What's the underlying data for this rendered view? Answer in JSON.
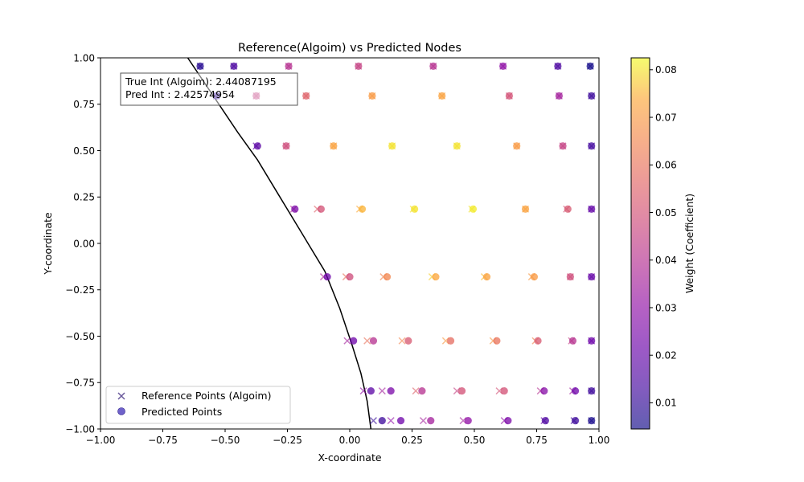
{
  "chart_data": {
    "type": "scatter",
    "title": "Reference(Algoim) vs Predicted Nodes",
    "xlabel": "X-coordinate",
    "ylabel": "Y-coordinate",
    "xlim": [
      -1.0,
      1.0
    ],
    "ylim": [
      -1.0,
      1.0
    ],
    "xticks": [
      -1.0,
      -0.75,
      -0.5,
      -0.25,
      0.0,
      0.25,
      0.5,
      0.75,
      1.0
    ],
    "yticks": [
      -1.0,
      -0.75,
      -0.5,
      -0.25,
      0.0,
      0.25,
      0.5,
      0.75,
      1.0
    ],
    "tick_labels": [
      "−1.00",
      "−0.75",
      "−0.50",
      "−0.25",
      "0.00",
      "0.25",
      "0.50",
      "0.75",
      "1.00"
    ],
    "grid": false,
    "legend": {
      "placement": "lower-left",
      "entries": [
        "Reference Points (Algoim)",
        "Predicted Points"
      ]
    },
    "annotation": {
      "placement": "upper-left",
      "lines": [
        "True Int (Algoim): 2.44087195",
        "Pred Int : 2.42574954"
      ]
    },
    "colorbar": {
      "label": "Weight (Coefficient)",
      "colormap": "plasma",
      "range": [
        0.0045,
        0.0825
      ],
      "ticks": [
        0.01,
        0.02,
        0.03,
        0.04,
        0.05,
        0.06,
        0.07,
        0.08
      ],
      "tick_labels": [
        "0.01",
        "0.02",
        "0.03",
        "0.04",
        "0.05",
        "0.06",
        "0.07",
        "0.08"
      ]
    },
    "boundary_curve": {
      "color": "#000000",
      "points": [
        [
          -0.65,
          1.0
        ],
        [
          -0.55,
          0.8
        ],
        [
          -0.45,
          0.6
        ],
        [
          -0.37,
          0.45
        ],
        [
          -0.28,
          0.25
        ],
        [
          -0.19,
          0.05
        ],
        [
          -0.1,
          -0.15
        ],
        [
          -0.04,
          -0.35
        ],
        [
          0.01,
          -0.55
        ],
        [
          0.045,
          -0.7
        ],
        [
          0.07,
          -0.85
        ],
        [
          0.085,
          -1.0
        ]
      ]
    },
    "series": [
      {
        "name": "Reference Points (Algoim)",
        "marker": "x",
        "points": [
          [
            -0.6,
            0.955,
            0.008
          ],
          [
            -0.465,
            0.955,
            0.015
          ],
          [
            -0.245,
            0.955,
            0.04
          ],
          [
            0.035,
            0.955,
            0.045
          ],
          [
            0.335,
            0.955,
            0.04
          ],
          [
            0.615,
            0.955,
            0.03
          ],
          [
            0.835,
            0.955,
            0.015
          ],
          [
            0.965,
            0.955,
            0.005
          ],
          [
            -0.535,
            0.795,
            0.01
          ],
          [
            -0.375,
            0.795,
            0.045
          ],
          [
            -0.175,
            0.795,
            0.055
          ],
          [
            0.09,
            0.795,
            0.07
          ],
          [
            0.37,
            0.795,
            0.072
          ],
          [
            0.64,
            0.795,
            0.05
          ],
          [
            0.84,
            0.795,
            0.035
          ],
          [
            0.97,
            0.795,
            0.012
          ],
          [
            -0.375,
            0.525,
            0.018
          ],
          [
            -0.255,
            0.525,
            0.048
          ],
          [
            -0.065,
            0.525,
            0.072
          ],
          [
            0.17,
            0.525,
            0.08
          ],
          [
            0.43,
            0.525,
            0.08
          ],
          [
            0.67,
            0.525,
            0.07
          ],
          [
            0.855,
            0.525,
            0.045
          ],
          [
            0.97,
            0.525,
            0.013
          ],
          [
            -0.225,
            0.185,
            0.038
          ],
          [
            -0.13,
            0.185,
            0.055
          ],
          [
            0.04,
            0.185,
            0.074
          ],
          [
            0.255,
            0.185,
            0.08
          ],
          [
            0.49,
            0.185,
            0.08
          ],
          [
            0.705,
            0.185,
            0.072
          ],
          [
            0.87,
            0.185,
            0.05
          ],
          [
            0.97,
            0.185,
            0.018
          ],
          [
            -0.105,
            -0.18,
            0.038
          ],
          [
            -0.015,
            -0.18,
            0.06
          ],
          [
            0.135,
            -0.18,
            0.065
          ],
          [
            0.33,
            -0.18,
            0.078
          ],
          [
            0.54,
            -0.18,
            0.076
          ],
          [
            0.73,
            -0.18,
            0.07
          ],
          [
            0.885,
            -0.18,
            0.05
          ],
          [
            0.97,
            -0.18,
            0.025
          ],
          [
            -0.01,
            -0.525,
            0.035
          ],
          [
            0.07,
            -0.525,
            0.06
          ],
          [
            0.21,
            -0.525,
            0.065
          ],
          [
            0.385,
            -0.525,
            0.07
          ],
          [
            0.575,
            -0.525,
            0.07
          ],
          [
            0.745,
            -0.525,
            0.065
          ],
          [
            0.89,
            -0.525,
            0.045
          ],
          [
            0.97,
            -0.525,
            0.022
          ],
          [
            0.055,
            -0.795,
            0.03
          ],
          [
            0.13,
            -0.795,
            0.035
          ],
          [
            0.265,
            -0.795,
            0.055
          ],
          [
            0.43,
            -0.795,
            0.045
          ],
          [
            0.6,
            -0.795,
            0.05
          ],
          [
            0.765,
            -0.795,
            0.04
          ],
          [
            0.895,
            -0.795,
            0.035
          ],
          [
            0.97,
            -0.795,
            0.015
          ],
          [
            0.095,
            -0.955,
            0.01
          ],
          [
            0.165,
            -0.955,
            0.03
          ],
          [
            0.295,
            -0.955,
            0.035
          ],
          [
            0.455,
            -0.955,
            0.035
          ],
          [
            0.62,
            -0.955,
            0.03
          ],
          [
            0.78,
            -0.955,
            0.02
          ],
          [
            0.9,
            -0.955,
            0.012
          ],
          [
            0.97,
            -0.955,
            0.006
          ]
        ]
      },
      {
        "name": "Predicted Points",
        "marker": "o",
        "points": [
          [
            -0.6,
            0.955,
            0.008
          ],
          [
            -0.465,
            0.955,
            0.015
          ],
          [
            -0.245,
            0.955,
            0.04
          ],
          [
            0.035,
            0.955,
            0.045
          ],
          [
            0.335,
            0.955,
            0.04
          ],
          [
            0.615,
            0.955,
            0.03
          ],
          [
            0.835,
            0.955,
            0.015
          ],
          [
            0.965,
            0.955,
            0.005
          ],
          [
            -0.535,
            0.795,
            0.01
          ],
          [
            -0.375,
            0.795,
            0.045
          ],
          [
            -0.175,
            0.795,
            0.055
          ],
          [
            0.09,
            0.795,
            0.07
          ],
          [
            0.37,
            0.795,
            0.072
          ],
          [
            0.64,
            0.795,
            0.05
          ],
          [
            0.84,
            0.795,
            0.035
          ],
          [
            0.97,
            0.795,
            0.012
          ],
          [
            -0.37,
            0.525,
            0.018
          ],
          [
            -0.255,
            0.525,
            0.048
          ],
          [
            -0.065,
            0.525,
            0.072
          ],
          [
            0.17,
            0.525,
            0.08
          ],
          [
            0.43,
            0.525,
            0.08
          ],
          [
            0.67,
            0.525,
            0.07
          ],
          [
            0.855,
            0.525,
            0.045
          ],
          [
            0.97,
            0.525,
            0.013
          ],
          [
            -0.22,
            0.185,
            0.025
          ],
          [
            -0.115,
            0.185,
            0.05
          ],
          [
            0.05,
            0.185,
            0.075
          ],
          [
            0.26,
            0.185,
            0.08
          ],
          [
            0.495,
            0.185,
            0.081
          ],
          [
            0.705,
            0.185,
            0.072
          ],
          [
            0.875,
            0.185,
            0.052
          ],
          [
            0.97,
            0.185,
            0.02
          ],
          [
            -0.09,
            -0.18,
            0.022
          ],
          [
            0.0,
            -0.18,
            0.048
          ],
          [
            0.15,
            -0.18,
            0.065
          ],
          [
            0.345,
            -0.18,
            0.073
          ],
          [
            0.55,
            -0.18,
            0.072
          ],
          [
            0.74,
            -0.18,
            0.07
          ],
          [
            0.885,
            -0.18,
            0.048
          ],
          [
            0.97,
            -0.18,
            0.02
          ],
          [
            0.015,
            -0.525,
            0.022
          ],
          [
            0.095,
            -0.525,
            0.04
          ],
          [
            0.235,
            -0.525,
            0.052
          ],
          [
            0.405,
            -0.525,
            0.058
          ],
          [
            0.59,
            -0.525,
            0.06
          ],
          [
            0.755,
            -0.525,
            0.052
          ],
          [
            0.895,
            -0.525,
            0.04
          ],
          [
            0.97,
            -0.525,
            0.022
          ],
          [
            0.085,
            -0.795,
            0.018
          ],
          [
            0.165,
            -0.795,
            0.025
          ],
          [
            0.29,
            -0.795,
            0.04
          ],
          [
            0.45,
            -0.795,
            0.05
          ],
          [
            0.62,
            -0.795,
            0.05
          ],
          [
            0.78,
            -0.795,
            0.028
          ],
          [
            0.905,
            -0.795,
            0.022
          ],
          [
            0.97,
            -0.795,
            0.012
          ],
          [
            0.13,
            -0.955,
            0.012
          ],
          [
            0.205,
            -0.955,
            0.022
          ],
          [
            0.325,
            -0.955,
            0.035
          ],
          [
            0.475,
            -0.955,
            0.03
          ],
          [
            0.635,
            -0.955,
            0.025
          ],
          [
            0.785,
            -0.955,
            0.015
          ],
          [
            0.905,
            -0.955,
            0.012
          ],
          [
            0.97,
            -0.955,
            0.006
          ]
        ]
      }
    ]
  }
}
